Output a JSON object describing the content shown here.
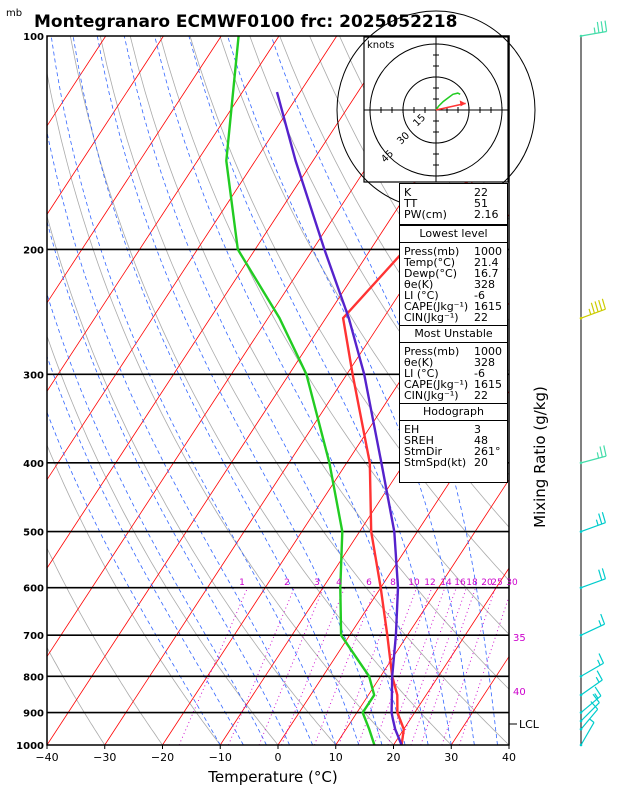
{
  "title": "Montegranaro ECMWF0100  frc: 2025052218",
  "y_unit": "mb",
  "x_title": "Temperature (°C)",
  "right_title": "Mixing Ratio (g/kg)",
  "lcl_label": "LCL",
  "colors": {
    "temperature": "#ff3333",
    "dewpoint": "#22cc22",
    "parcel": "#5522cc",
    "isotherm": "#ff0000",
    "dry_adiabat": "#aaaaaa",
    "moist_adiabat": "#3366ff",
    "mixing": "#cc00cc",
    "wind": "#00cccc"
  },
  "hodograph": {
    "unit_label": "knots",
    "ring_labels": [
      "15",
      "30",
      "45"
    ]
  },
  "indices": [
    {
      "k": "K",
      "v": "22"
    },
    {
      "k": "TT",
      "v": "51"
    },
    {
      "k": "PW(cm)",
      "v": "2.16"
    }
  ],
  "lowest": {
    "header": "Lowest level",
    "rows": [
      {
        "k": "Press(mb)",
        "v": "1000"
      },
      {
        "k": "Temp(°C)",
        "v": "21.4"
      },
      {
        "k": "Dewp(°C)",
        "v": "16.7"
      },
      {
        "k": "θe(K)",
        "v": "328"
      },
      {
        "k": "LI (°C)",
        "v": "-6"
      },
      {
        "k": "CAPE(Jkg⁻¹)",
        "v": "1615"
      },
      {
        "k": "CIN(Jkg⁻¹)",
        "v": "22"
      }
    ]
  },
  "unstable": {
    "header": "Most Unstable",
    "rows": [
      {
        "k": "Press(mb)",
        "v": "1000"
      },
      {
        "k": "θe(K)",
        "v": "328"
      },
      {
        "k": "LI (°C)",
        "v": "-6"
      },
      {
        "k": "CAPE(Jkg⁻¹)",
        "v": "1615"
      },
      {
        "k": "CIN(Jkg⁻¹)",
        "v": "22"
      }
    ]
  },
  "hodo_stats": {
    "header": "Hodograph",
    "rows": [
      {
        "k": "EH",
        "v": "3"
      },
      {
        "k": "SREH",
        "v": "48"
      },
      {
        "k": "StmDir",
        "v": "261°"
      },
      {
        "k": "StmSpd(kt)",
        "v": "20"
      }
    ]
  },
  "chart_data": {
    "type": "line",
    "title": "Montegranaro ECMWF0100  frc: 2025052218",
    "xlabel": "Temperature (°C)",
    "ylabel": "mb",
    "xlim": [
      -40,
      40
    ],
    "ylim": [
      1000,
      100
    ],
    "log_y": true,
    "x_ticks": [
      "−40",
      "−30",
      "−20",
      "−10",
      "0",
      "10",
      "20",
      "30",
      "40"
    ],
    "y_ticks": [
      "100",
      "200",
      "300",
      "400",
      "500",
      "600",
      "700",
      "800",
      "900",
      "1000"
    ],
    "isotherm_step": 10,
    "mixing_ratio_labels": [
      "1",
      "2",
      "3",
      "4",
      "6",
      "8",
      "10",
      "12",
      "14",
      "16",
      "18",
      "20",
      "25",
      "30"
    ],
    "theta_e_labels": [
      "35",
      "40"
    ],
    "series": [
      {
        "key": "temperature",
        "points": [
          [
            1000,
            21.4
          ],
          [
            950,
            20
          ],
          [
            900,
            17
          ],
          [
            850,
            15
          ],
          [
            800,
            12
          ],
          [
            700,
            6.5
          ],
          [
            600,
            0
          ],
          [
            500,
            -8
          ],
          [
            400,
            -16
          ],
          [
            300,
            -29
          ],
          [
            250,
            -37
          ],
          [
            200,
            -34
          ],
          [
            150,
            -30
          ],
          [
            100,
            -28
          ]
        ]
      },
      {
        "key": "dewpoint",
        "points": [
          [
            1000,
            16.7
          ],
          [
            950,
            14
          ],
          [
            900,
            11
          ],
          [
            850,
            11
          ],
          [
            800,
            8
          ],
          [
            700,
            -1.5
          ],
          [
            600,
            -7
          ],
          [
            500,
            -13
          ],
          [
            400,
            -23
          ],
          [
            300,
            -37
          ],
          [
            250,
            -48
          ],
          [
            200,
            -63
          ],
          [
            150,
            -75
          ],
          [
            100,
            -87
          ]
        ]
      },
      {
        "key": "parcel",
        "points": [
          [
            1000,
            21.4
          ],
          [
            950,
            18.5
          ],
          [
            920,
            17
          ],
          [
            900,
            16
          ],
          [
            800,
            12
          ],
          [
            700,
            8
          ],
          [
            600,
            3
          ],
          [
            500,
            -4
          ],
          [
            400,
            -14
          ],
          [
            300,
            -27
          ],
          [
            250,
            -36
          ],
          [
            200,
            -48
          ],
          [
            150,
            -63
          ],
          [
            120,
            -74
          ]
        ]
      }
    ],
    "winds": [
      {
        "p": 100,
        "dir": 260,
        "spd": 35
      },
      {
        "p": 250,
        "dir": 250,
        "spd": 45
      },
      {
        "p": 400,
        "dir": 255,
        "spd": 25
      },
      {
        "p": 500,
        "dir": 250,
        "spd": 25
      },
      {
        "p": 600,
        "dir": 250,
        "spd": 20
      },
      {
        "p": 700,
        "dir": 245,
        "spd": 15
      },
      {
        "p": 800,
        "dir": 240,
        "spd": 15
      },
      {
        "p": 850,
        "dir": 235,
        "spd": 15
      },
      {
        "p": 900,
        "dir": 230,
        "spd": 15
      },
      {
        "p": 925,
        "dir": 225,
        "spd": 10
      },
      {
        "p": 950,
        "dir": 220,
        "spd": 10
      },
      {
        "p": 1000,
        "dir": 210,
        "spd": 5
      }
    ],
    "hodograph_points": [
      [
        2,
        3
      ],
      [
        6,
        7
      ],
      [
        10,
        10
      ],
      [
        14,
        13
      ],
      [
        18,
        14
      ],
      [
        20,
        13
      ]
    ],
    "hodograph_storm": [
      15,
      3
    ]
  }
}
